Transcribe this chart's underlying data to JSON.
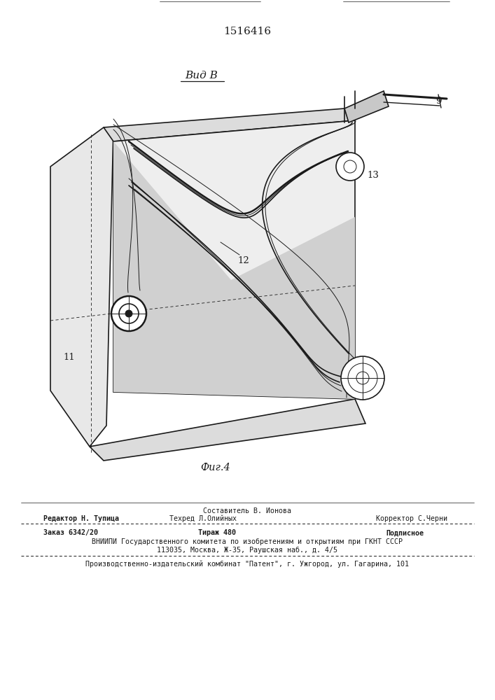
{
  "patent_number": "1516416",
  "view_label": "Вид В",
  "fig_label": "Фиг.4",
  "label_9": "9",
  "label_11": "11",
  "label_12": "12",
  "label_13": "13",
  "bg_color": "#ffffff",
  "line_color": "#1a1a1a",
  "footer": {
    "composer": "Составитель В. Ионова",
    "editor": "Редактор Н. Тупица",
    "techred": "Техред Л.Олийных",
    "corrector": "Корректор С.Черни",
    "order": "Заказ 6342/20",
    "copies": "Тираж 480",
    "subscr": "Подписное",
    "vniipи": "ВНИИПИ Государственного комитета по изобретениям и открытиям при ГКНТ СССР",
    "address": "113035, Москва, Ж-35, Раушская наб., д. 4/5",
    "patent_plant": "Производственно-издательский комбинат \"Патент\", г. Ужгород, ул. Гагарина, 101"
  }
}
